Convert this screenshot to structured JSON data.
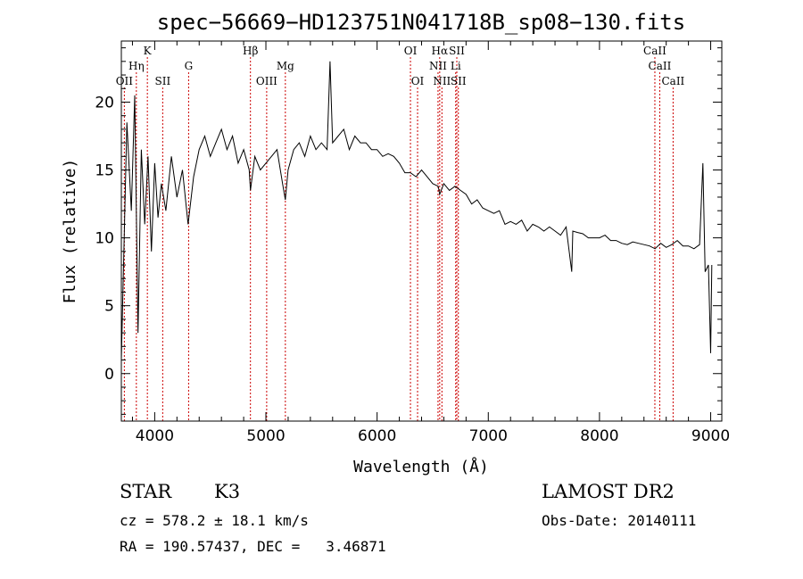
{
  "chart_data": {
    "type": "line",
    "title": "spec−56669−HD123751N041718B_sp08−130.fits",
    "xlabel": "Wavelength (Å)",
    "ylabel": "Flux (relative)",
    "xlim": [
      3700,
      9100
    ],
    "ylim": [
      -3.5,
      24.5
    ],
    "x_ticks": [
      4000,
      5000,
      6000,
      7000,
      8000,
      9000
    ],
    "y_ticks": [
      0,
      5,
      10,
      15,
      20
    ],
    "grid": false,
    "series": [
      {
        "x": [
          3700,
          3750,
          3790,
          3820,
          3850,
          3880,
          3910,
          3940,
          3970,
          4000,
          4030,
          4060,
          4100,
          4150,
          4200,
          4250,
          4300,
          4350,
          4400,
          4450,
          4500,
          4550,
          4600,
          4650,
          4700,
          4750,
          4800,
          4850,
          4861,
          4900,
          4950,
          5000,
          5050,
          5100,
          5150,
          5175,
          5200,
          5250,
          5300,
          5350,
          5400,
          5450,
          5500,
          5550,
          5577,
          5600,
          5650,
          5700,
          5750,
          5800,
          5850,
          5900,
          5950,
          6000,
          6050,
          6100,
          6150,
          6200,
          6250,
          6300,
          6350,
          6400,
          6450,
          6500,
          6550,
          6563,
          6600,
          6650,
          6700,
          6750,
          6800,
          6850,
          6900,
          6950,
          7000,
          7050,
          7100,
          7150,
          7200,
          7250,
          7300,
          7350,
          7400,
          7450,
          7500,
          7550,
          7600,
          7650,
          7700,
          7750,
          7760,
          7800,
          7850,
          7900,
          7950,
          8000,
          8050,
          8100,
          8150,
          8200,
          8250,
          8300,
          8350,
          8400,
          8450,
          8500,
          8550,
          8600,
          8650,
          8700,
          8750,
          8800,
          8850,
          8900,
          8930,
          8950,
          8980,
          9000,
          9010
        ],
        "y": [
          1.0,
          18.5,
          12.0,
          20.5,
          3.0,
          16.5,
          11.0,
          16.0,
          9.0,
          15.5,
          11.5,
          14.0,
          12.0,
          16.0,
          13.0,
          15.0,
          11.0,
          14.5,
          16.5,
          17.5,
          16.0,
          17.0,
          18.0,
          16.5,
          17.5,
          15.5,
          16.5,
          15.0,
          13.5,
          16.0,
          15.0,
          15.5,
          16.0,
          16.5,
          14.0,
          12.8,
          15.0,
          16.5,
          17.0,
          16.0,
          17.5,
          16.5,
          17.0,
          16.5,
          23.0,
          17.0,
          17.5,
          18.0,
          16.5,
          17.5,
          17.0,
          17.0,
          16.5,
          16.5,
          16.0,
          16.2,
          16.0,
          15.5,
          14.8,
          14.8,
          14.5,
          15.0,
          14.5,
          14.0,
          13.8,
          13.2,
          14.0,
          13.5,
          13.8,
          13.5,
          13.2,
          12.5,
          12.8,
          12.2,
          12.0,
          11.8,
          12.0,
          11.0,
          11.2,
          11.0,
          11.3,
          10.5,
          11.0,
          10.8,
          10.5,
          10.8,
          10.5,
          10.2,
          10.8,
          7.5,
          10.5,
          10.4,
          10.3,
          10.0,
          10.0,
          10.0,
          10.2,
          9.8,
          9.8,
          9.6,
          9.5,
          9.7,
          9.6,
          9.5,
          9.4,
          9.2,
          9.6,
          9.3,
          9.5,
          9.8,
          9.4,
          9.4,
          9.2,
          9.5,
          15.5,
          7.5,
          8.0,
          1.5,
          8.0
        ]
      }
    ],
    "line_labels": [
      {
        "wavelength": 3727,
        "label": "OII",
        "row": 3
      },
      {
        "wavelength": 3835,
        "label": "Hη",
        "row": 2
      },
      {
        "wavelength": 3934,
        "label": "K",
        "row": 1
      },
      {
        "wavelength": 4072,
        "label": "SII",
        "row": 3
      },
      {
        "wavelength": 4305,
        "label": "G",
        "row": 2
      },
      {
        "wavelength": 4861,
        "label": "Hβ",
        "row": 1
      },
      {
        "wavelength": 5007,
        "label": "OIII",
        "row": 3
      },
      {
        "wavelength": 5175,
        "label": "Mg",
        "row": 2
      },
      {
        "wavelength": 6300,
        "label": "OI",
        "row": 1
      },
      {
        "wavelength": 6364,
        "label": "OI",
        "row": 3
      },
      {
        "wavelength": 6548,
        "label": "NII",
        "row": 2
      },
      {
        "wavelength": 6563,
        "label": "Hα",
        "row": 1
      },
      {
        "wavelength": 6583,
        "label": "NII",
        "row": 3
      },
      {
        "wavelength": 6707,
        "label": "Li",
        "row": 2
      },
      {
        "wavelength": 6717,
        "label": "SII",
        "row": 1
      },
      {
        "wavelength": 6731,
        "label": "SII",
        "row": 3
      },
      {
        "wavelength": 8498,
        "label": "CaII",
        "row": 1
      },
      {
        "wavelength": 8542,
        "label": "CaII",
        "row": 2
      },
      {
        "wavelength": 8662,
        "label": "CaII",
        "row": 3
      }
    ],
    "line_marker_color": "#cc0000"
  },
  "info": {
    "class": "STAR",
    "subclass": "K3",
    "survey": "LAMOST DR2",
    "cz": "cz = 578.2 ± 18.1 km/s",
    "obs_date": "Obs-Date: 20140111",
    "coords": "RA = 190.57437, DEC =   3.46871"
  }
}
